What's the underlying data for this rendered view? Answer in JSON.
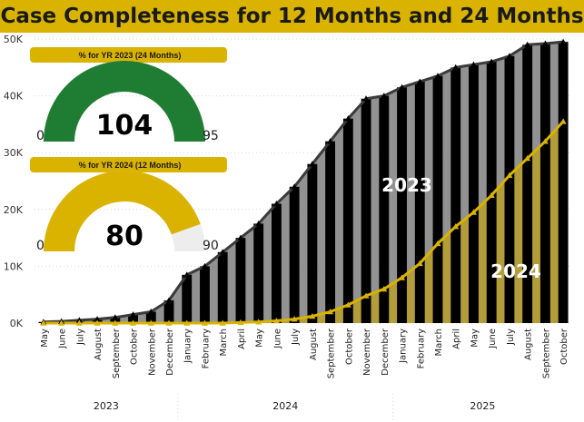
{
  "title": "Case Completeness for 12 Months and 24 Months",
  "colors": {
    "title_bar": "#D9B300",
    "series_2023_area": "#8C8C8C",
    "series_2023_line": "#3a3a3a",
    "series_2024_area": "#C9A400",
    "series_2024_line": "#D9B300",
    "bars": "#000000",
    "gauge_green": "#1E7D32",
    "gauge_gold": "#D9B300",
    "gauge_track": "#EDEDED"
  },
  "gauges": [
    {
      "label": "% for YR 2023 (24 Months)",
      "value": "104",
      "min": "0",
      "max": "95",
      "fill_fraction": 1.0,
      "color": "#1E7D32"
    },
    {
      "label": "% for YR 2024 (12 Months)",
      "value": "80",
      "min": "0",
      "max": "90",
      "fill_fraction": 0.89,
      "color": "#D9B300"
    }
  ],
  "chart_data": {
    "type": "area",
    "title": "Case Completeness for 12 Months and 24 Months",
    "ylim": [
      0,
      50000
    ],
    "y_ticks": [
      {
        "value": 0,
        "label": "0K"
      },
      {
        "value": 10000,
        "label": "10K"
      },
      {
        "value": 20000,
        "label": "20K"
      },
      {
        "value": 30000,
        "label": "30K"
      },
      {
        "value": 40000,
        "label": "40K"
      },
      {
        "value": 50000,
        "label": "50K"
      }
    ],
    "categories": [
      "May",
      "June",
      "July",
      "August",
      "September",
      "October",
      "November",
      "December",
      "January",
      "February",
      "March",
      "April",
      "May",
      "June",
      "July",
      "August",
      "September",
      "October",
      "November",
      "December",
      "January",
      "February",
      "March",
      "April",
      "May",
      "June",
      "July",
      "August",
      "September",
      "October"
    ],
    "year_groups": [
      {
        "label": "2023",
        "count": 8
      },
      {
        "label": "2024",
        "count": 12
      },
      {
        "label": "2025",
        "count": 10
      }
    ],
    "series": [
      {
        "name": "2023",
        "values": [
          200,
          300,
          500,
          700,
          1000,
          1500,
          2000,
          4000,
          8500,
          10000,
          12500,
          15000,
          17500,
          21000,
          24000,
          28000,
          32000,
          36000,
          39500,
          40000,
          41500,
          42500,
          43500,
          45000,
          45500,
          46000,
          47000,
          49000,
          49200,
          49500
        ]
      },
      {
        "name": "2024",
        "values": [
          0,
          0,
          0,
          0,
          0,
          0,
          0,
          0,
          0,
          0,
          0,
          100,
          200,
          400,
          700,
          1200,
          2000,
          3200,
          4800,
          6000,
          8000,
          10500,
          14000,
          17000,
          19500,
          22500,
          26000,
          29000,
          32000,
          35500
        ]
      }
    ],
    "grid": true,
    "legend": "none"
  }
}
